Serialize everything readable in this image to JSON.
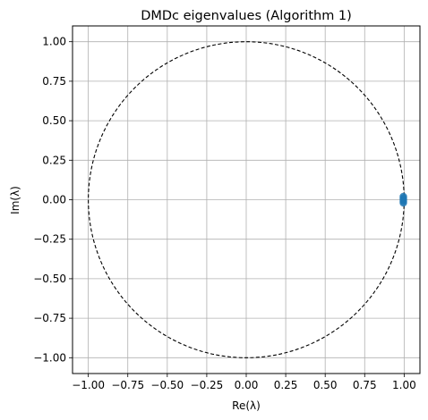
{
  "chart_data": {
    "type": "scatter",
    "title": "DMDc eigenvalues (Algorithm 1)",
    "xlabel": "Re(λ)",
    "ylabel": "Im(λ)",
    "xlim": [
      -1.1,
      1.1
    ],
    "ylim": [
      -1.1,
      1.1
    ],
    "xticks": [
      -1.0,
      -0.75,
      -0.5,
      -0.25,
      0.0,
      0.25,
      0.5,
      0.75,
      1.0
    ],
    "yticks": [
      -1.0,
      -0.75,
      -0.5,
      -0.25,
      0.0,
      0.25,
      0.5,
      0.75,
      1.0
    ],
    "xtick_labels": [
      "−1.00",
      "−0.75",
      "−0.50",
      "−0.25",
      "0.00",
      "0.25",
      "0.50",
      "0.75",
      "1.00"
    ],
    "ytick_labels": [
      "−1.00",
      "−0.75",
      "−0.50",
      "−0.25",
      "0.00",
      "0.25",
      "0.50",
      "0.75",
      "1.00"
    ],
    "grid": true,
    "unit_circle": {
      "radius": 1.0,
      "style": "dashed",
      "color": "#000000"
    },
    "series": [
      {
        "color": "#1f77b4",
        "points": [
          {
            "x": 0.995,
            "y": 0.02
          },
          {
            "x": 0.995,
            "y": 0.01
          },
          {
            "x": 0.995,
            "y": 0.0
          },
          {
            "x": 0.995,
            "y": -0.01
          },
          {
            "x": 0.995,
            "y": -0.02
          }
        ]
      }
    ]
  }
}
